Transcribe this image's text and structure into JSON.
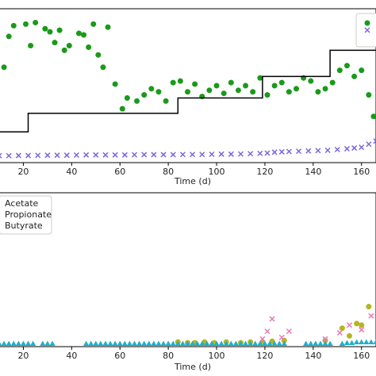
{
  "chart_data": [
    {
      "type": "scatter",
      "xlabel": "Time (d)",
      "xlim": [
        10,
        166
      ],
      "ylim": [
        0,
        1
      ],
      "x_ticks": [
        20,
        40,
        60,
        80,
        100,
        120,
        140,
        160
      ],
      "x_tick_labels": [
        "20",
        "40",
        "60",
        "80",
        "100",
        "120",
        "140",
        "160"
      ],
      "legend_position": "top-right",
      "colors": {
        "green": "#1a9a1a",
        "step": "#000000",
        "purple": "#7b68d8"
      },
      "series": [
        {
          "kind": "scatter-circle",
          "color": "#1a9a1a",
          "x": [
            12,
            14,
            16,
            21,
            23,
            25,
            29,
            31,
            33,
            35,
            37,
            39,
            43,
            45,
            47,
            49,
            51,
            53,
            55,
            58,
            61,
            63,
            67,
            70,
            73,
            76,
            79,
            82,
            85,
            88,
            91,
            94,
            97,
            100,
            103,
            106,
            109,
            112,
            115,
            118,
            121,
            124,
            127,
            130,
            133,
            136,
            139,
            142,
            145,
            148,
            151,
            154,
            157,
            160,
            163,
            165
          ],
          "y": [
            0.62,
            0.82,
            0.89,
            0.9,
            0.76,
            0.91,
            0.87,
            0.85,
            0.78,
            0.86,
            0.73,
            0.76,
            0.84,
            0.83,
            0.75,
            0.9,
            0.7,
            0.62,
            0.88,
            0.51,
            0.35,
            0.42,
            0.4,
            0.44,
            0.48,
            0.46,
            0.4,
            0.52,
            0.53,
            0.46,
            0.51,
            0.43,
            0.47,
            0.5,
            0.45,
            0.52,
            0.47,
            0.5,
            0.46,
            0.55,
            0.44,
            0.5,
            0.52,
            0.46,
            0.48,
            0.55,
            0.53,
            0.46,
            0.48,
            0.52,
            0.6,
            0.63,
            0.56,
            0.6,
            0.44,
            0.3
          ]
        },
        {
          "kind": "step-line",
          "color": "#000000",
          "x": [
            10,
            22,
            22,
            84,
            84,
            119,
            119,
            147,
            147,
            166
          ],
          "y": [
            0.2,
            0.2,
            0.32,
            0.32,
            0.42,
            0.42,
            0.56,
            0.56,
            0.73,
            0.73
          ]
        },
        {
          "kind": "scatter-x",
          "color": "#7b68d8",
          "x": [
            10,
            14,
            18,
            22,
            26,
            30,
            34,
            38,
            42,
            46,
            50,
            54,
            58,
            62,
            66,
            70,
            74,
            78,
            82,
            86,
            90,
            94,
            98,
            102,
            106,
            110,
            114,
            118,
            121,
            124,
            127,
            130,
            134,
            138,
            142,
            146,
            150,
            154,
            157,
            160,
            163,
            166
          ],
          "y": [
            0.045,
            0.045,
            0.046,
            0.046,
            0.047,
            0.048,
            0.048,
            0.048,
            0.049,
            0.05,
            0.05,
            0.05,
            0.05,
            0.05,
            0.051,
            0.052,
            0.052,
            0.052,
            0.052,
            0.053,
            0.053,
            0.053,
            0.054,
            0.055,
            0.055,
            0.056,
            0.058,
            0.06,
            0.062,
            0.068,
            0.07,
            0.072,
            0.074,
            0.076,
            0.078,
            0.08,
            0.085,
            0.09,
            0.095,
            0.1,
            0.12,
            0.14
          ]
        }
      ]
    },
    {
      "type": "scatter",
      "xlabel": "Time (d)",
      "xlim": [
        10,
        166
      ],
      "ylim": [
        0,
        1
      ],
      "x_ticks": [
        20,
        40,
        60,
        80,
        100,
        120,
        140,
        160
      ],
      "x_tick_labels": [
        "20",
        "40",
        "60",
        "80",
        "100",
        "120",
        "140",
        "160"
      ],
      "legend_position": "top-left",
      "legend": [
        "Acetate",
        "Propionate",
        "Butyrate"
      ],
      "series": [
        {
          "name": "Acetate",
          "marker": "circle",
          "color": "#b5b520",
          "x": [
            84,
            88,
            91,
            95,
            99,
            104,
            110,
            114,
            119,
            123,
            128,
            145,
            152,
            155,
            158,
            160,
            163
          ],
          "y": [
            0.03,
            0.025,
            0.025,
            0.03,
            0.025,
            0.03,
            0.025,
            0.03,
            0.03,
            0.035,
            0.04,
            0.04,
            0.12,
            0.07,
            0.15,
            0.14,
            0.26
          ]
        },
        {
          "name": "Propionate",
          "marker": "x",
          "color": "#e87ab8",
          "x": [
            119,
            121,
            123,
            127,
            130,
            145,
            151,
            155,
            160,
            164
          ],
          "y": [
            0.05,
            0.1,
            0.18,
            0.06,
            0.1,
            0.05,
            0.09,
            0.14,
            0.11,
            0.2
          ]
        },
        {
          "name": "Butyrate",
          "marker": "triangle",
          "color": "#1fb0c8",
          "x": [
            10,
            12,
            14,
            16,
            18,
            20,
            22,
            24,
            28,
            30,
            32,
            46,
            48,
            50,
            52,
            54,
            56,
            58,
            60,
            62,
            64,
            66,
            68,
            70,
            72,
            74,
            76,
            78,
            80,
            82,
            84,
            86,
            88,
            90,
            92,
            94,
            96,
            98,
            100,
            102,
            104,
            106,
            108,
            110,
            112,
            114,
            116,
            118,
            120,
            122,
            124,
            126,
            128,
            137,
            139,
            141,
            143,
            145,
            147,
            152,
            154,
            156,
            158,
            160,
            162,
            164,
            166
          ],
          "y": [
            0.02,
            0.02,
            0.02,
            0.02,
            0.02,
            0.02,
            0.02,
            0.02,
            0.02,
            0.02,
            0.02,
            0.02,
            0.02,
            0.02,
            0.02,
            0.02,
            0.02,
            0.02,
            0.02,
            0.02,
            0.02,
            0.02,
            0.02,
            0.02,
            0.02,
            0.02,
            0.02,
            0.02,
            0.02,
            0.02,
            0.02,
            0.02,
            0.02,
            0.02,
            0.02,
            0.02,
            0.02,
            0.02,
            0.02,
            0.02,
            0.02,
            0.02,
            0.02,
            0.02,
            0.02,
            0.02,
            0.02,
            0.02,
            0.02,
            0.02,
            0.02,
            0.02,
            0.02,
            0.02,
            0.02,
            0.02,
            0.02,
            0.02,
            0.02,
            0.02,
            0.025,
            0.025,
            0.03,
            0.03,
            0.03,
            0.03,
            0.03
          ]
        }
      ]
    }
  ]
}
